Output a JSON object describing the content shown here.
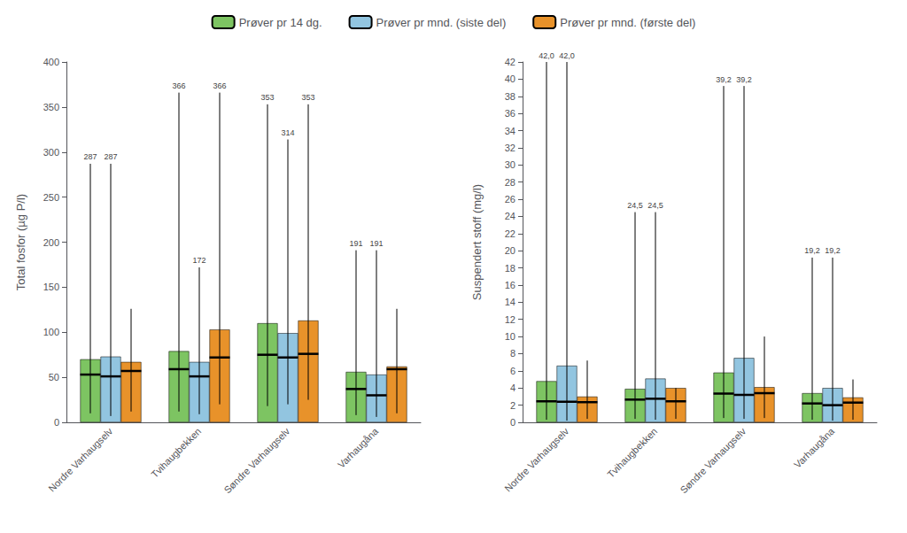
{
  "chart_data": [
    {
      "type": "bar",
      "ylabel": "Total fosfor (µg P/l)",
      "categories": [
        "Nordre Varhaugselv",
        "Tvihaugbekken",
        "Søndre Varhaugselv",
        "Varhaugåna"
      ],
      "series": [
        {
          "name": "Prøver pr 14 dg.",
          "color": "#7DC462",
          "values": [
            70,
            79,
            110,
            56
          ],
          "medians": [
            53,
            59,
            75,
            37
          ],
          "mins": [
            10,
            12,
            18,
            8
          ],
          "maxs": [
            287,
            366,
            353,
            191
          ],
          "max_labels": [
            "287",
            "366",
            "353",
            "191"
          ]
        },
        {
          "name": "Prøver pr mnd. (siste del)",
          "color": "#92C5E0",
          "values": [
            73,
            67,
            99,
            53
          ],
          "medians": [
            51,
            51,
            72,
            30
          ],
          "mins": [
            7,
            9,
            20,
            6
          ],
          "maxs": [
            287,
            172,
            314,
            191
          ],
          "max_labels": [
            "287",
            "172",
            "314",
            "191"
          ]
        },
        {
          "name": "Prøver pr mnd. (første del)",
          "color": "#E8922A",
          "values": [
            67,
            103,
            113,
            62
          ],
          "medians": [
            57,
            72,
            76,
            59
          ],
          "mins": [
            12,
            20,
            25,
            10
          ],
          "maxs": [
            126,
            366,
            353,
            126
          ],
          "max_labels": [
            null,
            "366",
            "353",
            null
          ]
        }
      ],
      "ylim": [
        0,
        400
      ],
      "yticks": [
        0,
        50,
        100,
        150,
        200,
        250,
        300,
        350,
        400
      ],
      "grid": false,
      "legend": "top"
    },
    {
      "type": "bar",
      "ylabel": "Suspendert stoff (mg/l)",
      "categories": [
        "Nordre Varhaugselv",
        "Tvihaugbekken",
        "Søndre Varhaugselv",
        "Varhaugåna"
      ],
      "series": [
        {
          "name": "Prøver pr 14 dg.",
          "color": "#7DC462",
          "values": [
            4.8,
            3.9,
            5.8,
            3.4
          ],
          "medians": [
            2.45,
            2.65,
            3.35,
            2.2
          ],
          "mins": [
            0.3,
            0.4,
            0.5,
            0.3
          ],
          "maxs": [
            42.0,
            24.5,
            39.2,
            19.2
          ],
          "max_labels": [
            "42,0",
            "24,5",
            "39,2",
            "19,2"
          ]
        },
        {
          "name": "Prøver pr mnd. (siste del)",
          "color": "#92C5E0",
          "values": [
            6.6,
            5.1,
            7.5,
            4.0
          ],
          "medians": [
            2.4,
            2.75,
            3.2,
            2.0
          ],
          "mins": [
            0.2,
            0.3,
            0.4,
            0.2
          ],
          "maxs": [
            42.0,
            24.5,
            39.2,
            19.2
          ],
          "max_labels": [
            "42,0",
            "24,5",
            "39,2",
            "19,2"
          ]
        },
        {
          "name": "Prøver pr mnd. (første del)",
          "color": "#E8922A",
          "values": [
            3.0,
            4.0,
            4.1,
            2.9
          ],
          "medians": [
            2.35,
            2.45,
            3.4,
            2.3
          ],
          "mins": [
            0.4,
            0.4,
            0.5,
            0.3
          ],
          "maxs": [
            7.2,
            4.0,
            10.0,
            5.0
          ],
          "max_labels": [
            null,
            null,
            null,
            null
          ]
        }
      ],
      "ylim": [
        0,
        42
      ],
      "yticks": [
        0,
        2,
        4,
        6,
        8,
        10,
        12,
        14,
        16,
        18,
        20,
        22,
        24,
        26,
        28,
        30,
        32,
        34,
        36,
        38,
        40,
        42
      ],
      "grid": false,
      "legend": "top"
    }
  ]
}
